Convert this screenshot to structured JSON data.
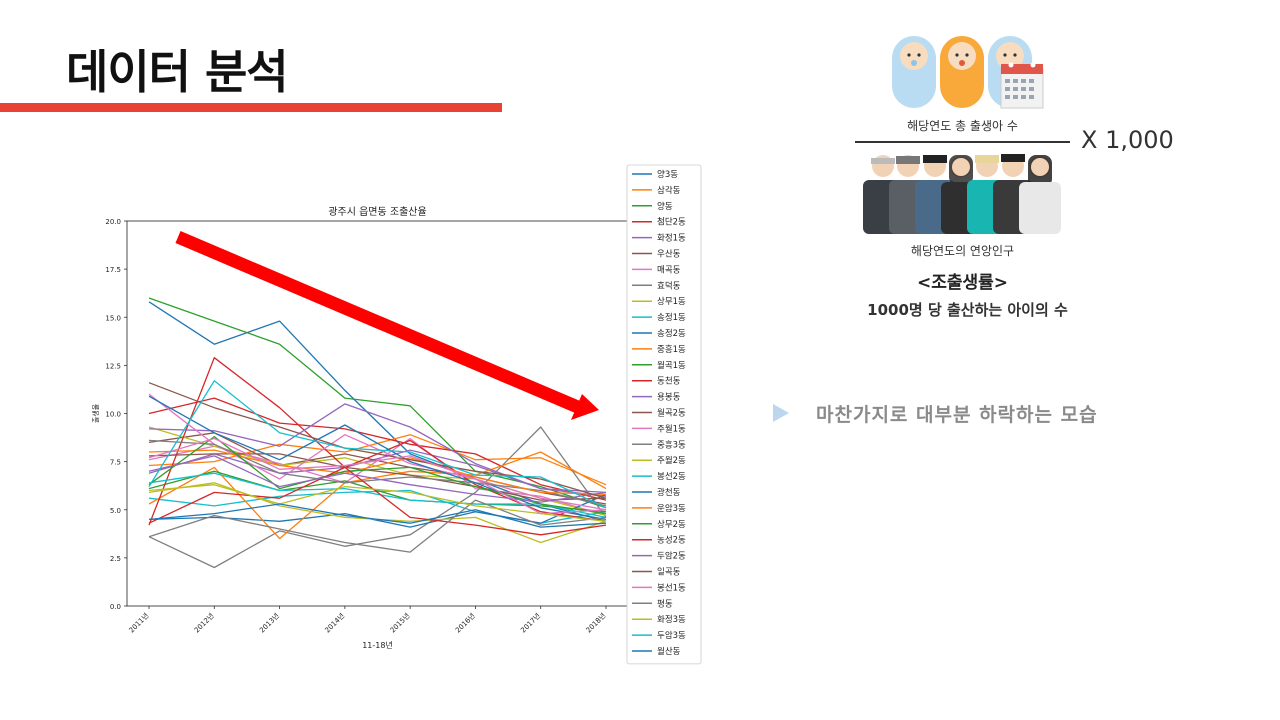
{
  "slide": {
    "title": "데이터 분석",
    "formula": {
      "numerator_label": "해당연도 총 출생아 수",
      "denominator_label": "해당연도의 연앙인구",
      "multiplier": "X 1,000",
      "definition_title": "<조출생률>",
      "definition_text": "1000명 당 출산하는 아이의 수"
    },
    "bullet": {
      "text": "마찬가지로 대부분 하락하는 모습"
    }
  },
  "colors": {
    "accent_red": "#e94235",
    "bullet_blue": "#bcd6ee",
    "arrow_red": "#ff0000"
  },
  "chart_data": {
    "type": "line",
    "title": "광주시 읍면동 조출산율",
    "xlabel": "11-18년",
    "ylabel": "출생율",
    "ylim": [
      0,
      20
    ],
    "yticks": [
      "0.0",
      "2.5",
      "5.0",
      "7.5",
      "10.0",
      "12.5",
      "15.0",
      "17.5",
      "20.0"
    ],
    "grid": false,
    "legend_position": "right",
    "categories": [
      "2011년",
      "2012년",
      "2013년",
      "2014년",
      "2015년",
      "2016년",
      "2017년",
      "2018년"
    ],
    "series": [
      {
        "name": "양3동",
        "values": [
          15.8,
          13.6,
          14.8,
          11.2,
          7.9,
          6.6,
          5.3,
          4.4
        ]
      },
      {
        "name": "삼각동",
        "values": [
          7.3,
          7.5,
          8.4,
          8.0,
          8.9,
          7.6,
          7.7,
          6.3
        ]
      },
      {
        "name": "양동",
        "values": [
          16.0,
          14.8,
          13.6,
          10.8,
          10.4,
          7.0,
          6.2,
          5.1
        ]
      },
      {
        "name": "첨단2동",
        "values": [
          10.0,
          10.8,
          9.5,
          9.2,
          8.4,
          7.9,
          6.3,
          5.5
        ]
      },
      {
        "name": "화정1동",
        "values": [
          6.9,
          7.9,
          6.9,
          7.2,
          8.1,
          7.3,
          6.1,
          5.7
        ]
      },
      {
        "name": "우산동",
        "values": [
          8.5,
          9.0,
          7.3,
          7.9,
          7.2,
          6.7,
          5.9,
          5.3
        ]
      },
      {
        "name": "매곡동",
        "values": [
          7.6,
          8.3,
          7.4,
          6.4,
          8.7,
          6.1,
          5.7,
          4.7
        ]
      },
      {
        "name": "효덕동",
        "values": [
          3.6,
          2.0,
          3.9,
          3.1,
          3.7,
          5.9,
          9.3,
          4.6
        ]
      },
      {
        "name": "상무1동",
        "values": [
          9.3,
          8.3,
          7.3,
          7.7,
          6.8,
          6.6,
          5.6,
          4.7
        ]
      },
      {
        "name": "송정1동",
        "values": [
          5.6,
          5.2,
          5.7,
          5.9,
          6.0,
          4.9,
          4.3,
          4.9
        ]
      },
      {
        "name": "송정2동",
        "values": [
          4.5,
          4.6,
          4.4,
          4.8,
          4.1,
          4.9,
          4.3,
          5.8
        ]
      },
      {
        "name": "중흥1동",
        "values": [
          5.3,
          7.2,
          3.5,
          6.4,
          7.0,
          6.8,
          8.0,
          6.1
        ]
      },
      {
        "name": "월곡1동",
        "values": [
          6.1,
          7.0,
          6.0,
          6.5,
          5.5,
          5.3,
          5.2,
          4.9
        ]
      },
      {
        "name": "동천동",
        "values": [
          4.2,
          12.9,
          10.3,
          7.2,
          8.6,
          6.3,
          4.9,
          4.4
        ]
      },
      {
        "name": "용봉동",
        "values": [
          9.2,
          9.1,
          8.3,
          10.5,
          9.3,
          7.4,
          6.1,
          5.9
        ]
      },
      {
        "name": "월곡2동",
        "values": [
          7.8,
          7.9,
          7.9,
          7.2,
          6.8,
          6.2,
          5.5,
          5.6
        ]
      },
      {
        "name": "주월1동",
        "values": [
          11.0,
          8.4,
          6.6,
          8.9,
          7.4,
          6.6,
          5.6,
          5.0
        ]
      },
      {
        "name": "중흥3동",
        "values": [
          8.6,
          8.4,
          6.9,
          6.4,
          6.7,
          6.4,
          6.0,
          5.2
        ]
      },
      {
        "name": "주월2동",
        "values": [
          5.9,
          6.4,
          5.2,
          4.6,
          4.4,
          4.6,
          3.3,
          4.4
        ]
      },
      {
        "name": "봉선2동",
        "values": [
          6.4,
          6.9,
          6.0,
          6.1,
          5.5,
          5.3,
          5.3,
          4.6
        ]
      },
      {
        "name": "광천동",
        "values": [
          10.9,
          9.0,
          7.6,
          9.4,
          7.5,
          6.4,
          5.1,
          4.5
        ]
      },
      {
        "name": "운암3동",
        "values": [
          8.0,
          8.1,
          7.3,
          6.9,
          7.7,
          6.7,
          5.9,
          5.8
        ]
      },
      {
        "name": "상무2동",
        "values": [
          6.3,
          8.8,
          6.1,
          7.0,
          7.2,
          6.2,
          5.3,
          4.8
        ]
      },
      {
        "name": "농성2동",
        "values": [
          4.3,
          5.9,
          5.6,
          7.2,
          4.6,
          4.2,
          3.7,
          4.2
        ]
      },
      {
        "name": "두암2동",
        "values": [
          7.0,
          7.8,
          6.2,
          6.9,
          6.3,
          5.8,
          5.4,
          5.9
        ]
      },
      {
        "name": "일곡동",
        "values": [
          11.6,
          10.3,
          9.3,
          8.2,
          7.6,
          7.0,
          6.6,
          5.6
        ]
      },
      {
        "name": "봉선1동",
        "values": [
          7.7,
          8.7,
          7.1,
          7.3,
          7.8,
          6.6,
          4.8,
          5.0
        ]
      },
      {
        "name": "평동",
        "values": [
          3.6,
          4.7,
          4.0,
          3.3,
          2.8,
          5.5,
          4.2,
          4.6
        ]
      },
      {
        "name": "화정3동",
        "values": [
          6.0,
          6.3,
          5.3,
          6.2,
          5.9,
          5.2,
          4.8,
          4.4
        ]
      },
      {
        "name": "두암3동",
        "values": [
          6.2,
          11.7,
          9.0,
          8.2,
          8.0,
          6.8,
          6.7,
          5.1
        ]
      },
      {
        "name": "월산동",
        "values": [
          4.5,
          4.8,
          5.3,
          4.7,
          4.3,
          5.0,
          4.1,
          4.3
        ]
      }
    ],
    "palette": [
      "#1f77b4",
      "#ff7f0e",
      "#2ca02c",
      "#d62728",
      "#9467bd",
      "#8c564b",
      "#e377c2",
      "#7f7f7f",
      "#bcbd22",
      "#17becf"
    ]
  }
}
